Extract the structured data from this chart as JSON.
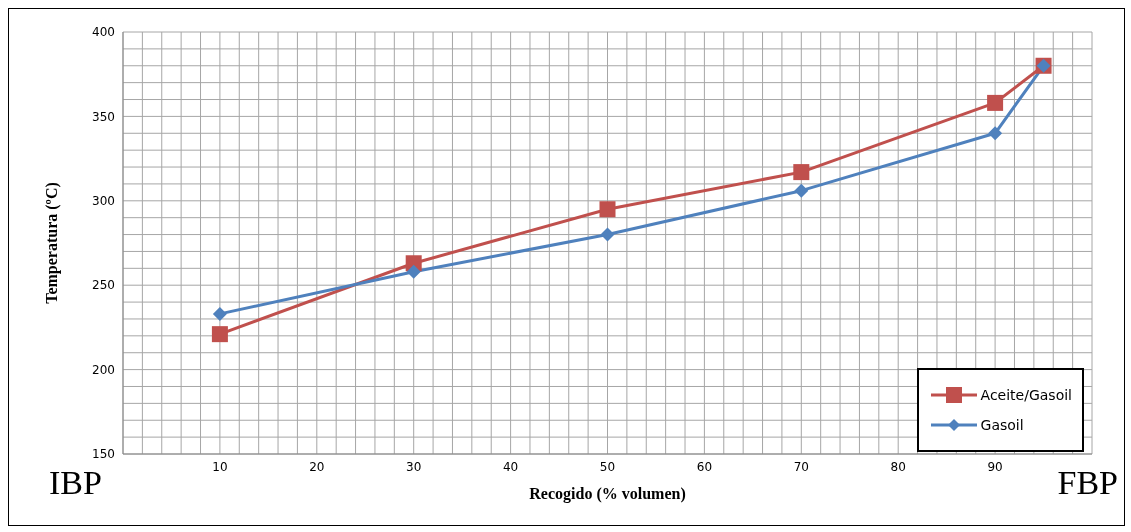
{
  "chart_data": {
    "type": "line",
    "xlabel": "Recogido (% volumen)",
    "ylabel": "Temperatura (ºC)",
    "x": [
      10,
      30,
      50,
      70,
      90,
      95
    ],
    "series": [
      {
        "name": "Aceite/Gasoil",
        "color": "#c0504d",
        "marker": "square",
        "values": [
          221,
          263,
          295,
          317,
          358,
          380
        ]
      },
      {
        "name": "Gasoil",
        "color": "#4f81bd",
        "marker": "diamond",
        "values": [
          233,
          258,
          280,
          306,
          340,
          380
        ]
      }
    ],
    "xlim": [
      0,
      100
    ],
    "xticks": [
      {
        "value": 0,
        "label": null
      },
      {
        "value": 2,
        "label": null
      },
      {
        "value": 4,
        "label": null
      },
      {
        "value": 6,
        "label": null
      },
      {
        "value": 8,
        "label": null
      },
      10,
      {
        "value": 12,
        "label": null
      },
      {
        "value": 14,
        "label": null
      },
      {
        "value": 16,
        "label": null
      },
      {
        "value": 18,
        "label": null
      },
      20,
      {
        "value": 22,
        "label": null
      },
      {
        "value": 24,
        "label": null
      },
      {
        "value": 26,
        "label": null
      },
      {
        "value": 28,
        "label": null
      },
      30,
      {
        "value": 32,
        "label": null
      },
      {
        "value": 34,
        "label": null
      },
      {
        "value": 36,
        "label": null
      },
      {
        "value": 38,
        "label": null
      },
      40,
      {
        "value": 42,
        "label": null
      },
      {
        "value": 44,
        "label": null
      },
      {
        "value": 46,
        "label": null
      },
      {
        "value": 48,
        "label": null
      },
      50,
      {
        "value": 52,
        "label": null
      },
      {
        "value": 54,
        "label": null
      },
      {
        "value": 56,
        "label": null
      },
      {
        "value": 58,
        "label": null
      },
      60,
      {
        "value": 62,
        "label": null
      },
      {
        "value": 64,
        "label": null
      },
      {
        "value": 66,
        "label": null
      },
      {
        "value": 68,
        "label": null
      },
      70,
      {
        "value": 72,
        "label": null
      },
      {
        "value": 74,
        "label": null
      },
      {
        "value": 76,
        "label": null
      },
      {
        "value": 78,
        "label": null
      },
      80,
      {
        "value": 82,
        "label": null
      },
      {
        "value": 84,
        "label": null
      },
      {
        "value": 86,
        "label": null
      },
      {
        "value": 88,
        "label": null
      },
      90,
      {
        "value": 92,
        "label": null
      },
      {
        "value": 94,
        "label": null
      },
      {
        "value": 96,
        "label": null
      },
      {
        "value": 98,
        "label": null
      },
      {
        "value": 100,
        "label": null
      }
    ],
    "ylim": [
      150,
      400
    ],
    "yticks": [
      150,
      {
        "value": 160,
        "label": null
      },
      {
        "value": 170,
        "label": null
      },
      {
        "value": 180,
        "label": null
      },
      {
        "value": 190,
        "label": null
      },
      200,
      {
        "value": 210,
        "label": null
      },
      {
        "value": 220,
        "label": null
      },
      {
        "value": 230,
        "label": null
      },
      {
        "value": 240,
        "label": null
      },
      250,
      {
        "value": 260,
        "label": null
      },
      {
        "value": 270,
        "label": null
      },
      {
        "value": 280,
        "label": null
      },
      {
        "value": 290,
        "label": null
      },
      300,
      {
        "value": 310,
        "label": null
      },
      {
        "value": 320,
        "label": null
      },
      {
        "value": 330,
        "label": null
      },
      {
        "value": 340,
        "label": null
      },
      350,
      {
        "value": 360,
        "label": null
      },
      {
        "value": 370,
        "label": null
      },
      {
        "value": 380,
        "label": null
      },
      {
        "value": 390,
        "label": null
      },
      400
    ],
    "grid": true,
    "legend": "bottom right",
    "annotations": [
      "IBP",
      "FBP"
    ]
  }
}
